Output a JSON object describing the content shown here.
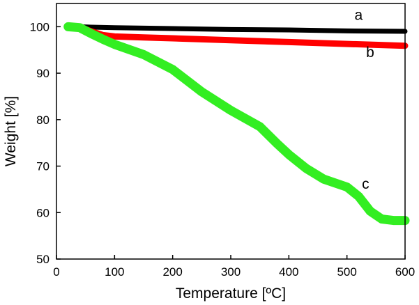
{
  "chart_data": {
    "type": "line",
    "xlabel": "Temperature [ºC]",
    "ylabel": "Weight [%]",
    "xlim": [
      0,
      600
    ],
    "ylim": [
      50,
      105
    ],
    "xticks": [
      0,
      100,
      200,
      300,
      400,
      500,
      600
    ],
    "yticks": [
      50,
      60,
      70,
      80,
      90,
      100
    ],
    "grid": false,
    "legend": "none",
    "series": [
      {
        "name": "a",
        "color": "#000000",
        "x": [
          20,
          40,
          60,
          100,
          200,
          300,
          400,
          500,
          600
        ],
        "y": [
          100.0,
          100.0,
          99.9,
          99.8,
          99.6,
          99.4,
          99.3,
          99.1,
          99.0
        ],
        "label_at": [
          520,
          102.5
        ]
      },
      {
        "name": "b",
        "color": "#ff0000",
        "x": [
          20,
          40,
          60,
          80,
          100,
          150,
          200,
          300,
          400,
          500,
          600
        ],
        "y": [
          100.0,
          99.9,
          99.0,
          98.2,
          97.9,
          97.7,
          97.5,
          97.1,
          96.7,
          96.3,
          95.9
        ],
        "label_at": [
          540,
          94.5
        ]
      },
      {
        "name": "c",
        "color": "#33ee22",
        "x": [
          20,
          40,
          60,
          80,
          100,
          150,
          200,
          250,
          300,
          350,
          380,
          400,
          430,
          460,
          500,
          520,
          540,
          560,
          580,
          600
        ],
        "y": [
          100.0,
          99.8,
          98.5,
          97.3,
          96.2,
          94.0,
          90.8,
          86.0,
          82.0,
          78.5,
          74.8,
          72.5,
          69.5,
          67.2,
          65.5,
          63.5,
          60.3,
          58.6,
          58.3,
          58.3
        ],
        "label_at": [
          532,
          66.2
        ]
      }
    ]
  }
}
